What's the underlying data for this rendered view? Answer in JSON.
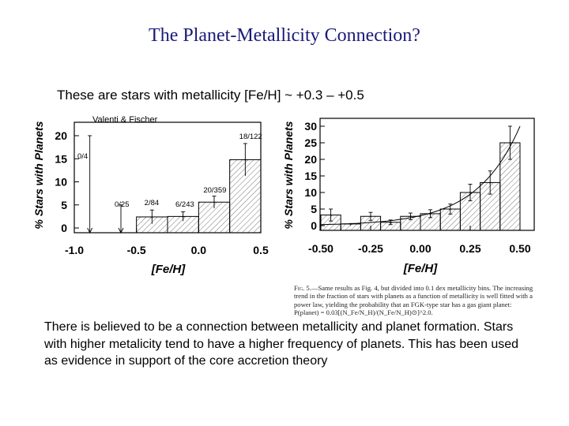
{
  "slide": {
    "title": "The Planet-Metallicity Connection?",
    "subtitle": "These are stars with metallicity [Fe/H] ~ +0.3 – +0.5",
    "credit": "Valenti & Fischer",
    "caption_label": "Fig. 5.",
    "caption_text": "—Same results as Fig. 4, but divided into 0.1 dex metallicity bins. The increasing trend in the fraction of stars with planets as a function of metallicity is well fitted with a power law, yielding the probability that an FGK-type star has a gas giant planet: P(planet) = 0.03[(N_Fe/N_H)/(N_Fe/N_H)⊙]^2.0.",
    "body": "There is believed to be a connection between metallicity and planet formation. Stars with higher metalicity tend to have a higher frequency of planets. This has been used as evidence in support of the core accretion theory"
  },
  "chart_data": [
    {
      "type": "bar",
      "ylabel": "% Stars with Planets",
      "xlabel": "[Fe/H]",
      "xlim": [
        -1.0,
        0.5
      ],
      "ylim": [
        0,
        22
      ],
      "xticks": [
        "-1.0",
        "-0.5",
        "0.0",
        "0.5"
      ],
      "yticks": [
        "0",
        "5",
        "10",
        "15",
        "20"
      ],
      "bins": [
        {
          "x0": -1.0,
          "x1": -0.75,
          "value": 0,
          "err_low": 0,
          "err_high": 20,
          "label": "0/4"
        },
        {
          "x0": -0.75,
          "x1": -0.5,
          "value": 0,
          "err_low": 0,
          "err_high": 5,
          "label": "0/25"
        },
        {
          "x0": -0.5,
          "x1": -0.25,
          "value": 2.4,
          "err_low": 1.5,
          "err_high": 1.5,
          "label": "2/84"
        },
        {
          "x0": -0.25,
          "x1": 0.0,
          "value": 2.5,
          "err_low": 1.0,
          "err_high": 1.0,
          "label": "6/243"
        },
        {
          "x0": 0.0,
          "x1": 0.25,
          "value": 5.6,
          "err_low": 1.3,
          "err_high": 1.3,
          "label": "20/359"
        },
        {
          "x0": 0.25,
          "x1": 0.5,
          "value": 14.8,
          "err_low": 3.5,
          "err_high": 3.5,
          "label": "18/122"
        }
      ]
    },
    {
      "type": "bar",
      "ylabel": "% Stars with Planets",
      "xlabel": "[Fe/H]",
      "xlim": [
        -0.5,
        0.5
      ],
      "ylim": [
        0,
        30
      ],
      "xticks": [
        "-0.50",
        "-0.25",
        "0.00",
        "0.25",
        "0.50"
      ],
      "yticks": [
        "0",
        "5",
        "10",
        "15",
        "20",
        "25",
        "30"
      ],
      "bins": [
        {
          "x0": -0.5,
          "x1": -0.4,
          "value": 3.2,
          "err": 1.8
        },
        {
          "x0": -0.4,
          "x1": -0.3,
          "value": 0.5,
          "err": 0
        },
        {
          "x0": -0.3,
          "x1": -0.2,
          "value": 2.8,
          "err": 1.2
        },
        {
          "x0": -0.2,
          "x1": -0.1,
          "value": 1.0,
          "err": 0.7
        },
        {
          "x0": -0.1,
          "x1": 0.0,
          "value": 2.8,
          "err": 1.0
        },
        {
          "x0": 0.0,
          "x1": 0.1,
          "value": 3.6,
          "err": 1.2
        },
        {
          "x0": 0.1,
          "x1": 0.2,
          "value": 5.0,
          "err": 1.5
        },
        {
          "x0": 0.2,
          "x1": 0.3,
          "value": 10.0,
          "err": 2.5
        },
        {
          "x0": 0.3,
          "x1": 0.4,
          "value": 13.0,
          "err": 3.5
        },
        {
          "x0": 0.4,
          "x1": 0.5,
          "value": 25.0,
          "err": 5.0
        }
      ],
      "fit": {
        "form": "P = 0.03 * (10^[Fe/H])^2.0",
        "coefficient_percent": 3.0,
        "exponent": 2.0
      }
    }
  ]
}
